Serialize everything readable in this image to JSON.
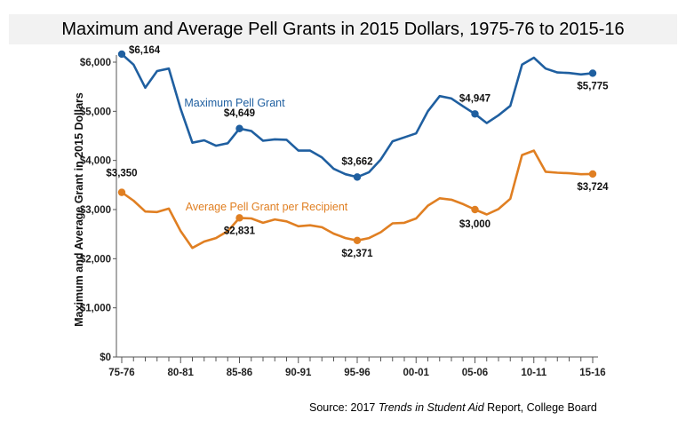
{
  "chart_data": {
    "type": "line",
    "title": "Maximum and Average Pell Grants in 2015 Dollars, 1975-76 to 2015-16",
    "ylabel": "Maximum and Average Grant in 2015 Dollars",
    "xlabel": "",
    "ylim": [
      0,
      6000
    ],
    "yticks": [
      0,
      1000,
      2000,
      3000,
      4000,
      5000,
      6000
    ],
    "ytick_labels": [
      "$0",
      "$1,000",
      "$2,000",
      "$3,000",
      "$4,000",
      "$5,000",
      "$6,000"
    ],
    "xtick_labels": [
      "75-76",
      "80-81",
      "85-86",
      "90-91",
      "95-96",
      "00-01",
      "05-06",
      "10-11",
      "15-16"
    ],
    "xtick_positions": [
      0,
      5,
      10,
      15,
      20,
      25,
      30,
      35,
      40
    ],
    "x": [
      "75-76",
      "76-77",
      "77-78",
      "78-79",
      "79-80",
      "80-81",
      "81-82",
      "82-83",
      "83-84",
      "84-85",
      "85-86",
      "86-87",
      "87-88",
      "88-89",
      "89-90",
      "90-91",
      "91-92",
      "92-93",
      "93-94",
      "94-95",
      "95-96",
      "96-97",
      "97-98",
      "98-99",
      "99-00",
      "00-01",
      "01-02",
      "02-03",
      "03-04",
      "04-05",
      "05-06",
      "06-07",
      "07-08",
      "08-09",
      "09-10",
      "10-11",
      "11-12",
      "12-13",
      "13-14",
      "14-15",
      "15-16"
    ],
    "grid": false,
    "series": [
      {
        "name": "Maximum Pell Grant",
        "color": "#1f5fa0",
        "values": [
          6164,
          5950,
          5480,
          5820,
          5870,
          5050,
          4360,
          4410,
          4300,
          4350,
          4649,
          4600,
          4400,
          4430,
          4420,
          4200,
          4200,
          4060,
          3830,
          3720,
          3662,
          3760,
          4020,
          4390,
          4470,
          4550,
          5000,
          5310,
          5260,
          5100,
          4947,
          4760,
          4920,
          5110,
          5950,
          6090,
          5870,
          5790,
          5780,
          5750,
          5775
        ],
        "labeled_points": [
          {
            "index": 0,
            "label": "$6,164"
          },
          {
            "index": 10,
            "label": "$4,649"
          },
          {
            "index": 20,
            "label": "$3,662"
          },
          {
            "index": 30,
            "label": "$4,947"
          },
          {
            "index": 40,
            "label": "$5,775"
          }
        ]
      },
      {
        "name": "Average Pell Grant per Recipient",
        "color": "#e07f22",
        "values": [
          3350,
          3180,
          2960,
          2950,
          3020,
          2560,
          2220,
          2350,
          2420,
          2560,
          2831,
          2820,
          2730,
          2800,
          2760,
          2660,
          2680,
          2640,
          2510,
          2420,
          2371,
          2420,
          2540,
          2720,
          2730,
          2820,
          3080,
          3230,
          3200,
          3110,
          3000,
          2900,
          3010,
          3220,
          4110,
          4200,
          3770,
          3750,
          3740,
          3720,
          3724
        ],
        "labeled_points": [
          {
            "index": 0,
            "label": "$3,350"
          },
          {
            "index": 10,
            "label": "$2,831"
          },
          {
            "index": 20,
            "label": "$2,371"
          },
          {
            "index": 30,
            "label": "$3,000"
          },
          {
            "index": 40,
            "label": "$3,724"
          }
        ]
      }
    ],
    "source_prefix": "Source: 2017 ",
    "source_italic": "Trends in Student Aid",
    "source_suffix": " Report, College Board"
  }
}
